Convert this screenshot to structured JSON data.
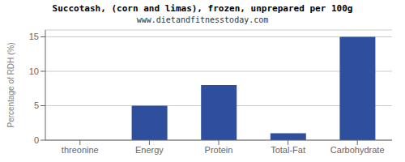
{
  "chart_data": {
    "type": "bar",
    "title": "Succotash, (corn and limas), frozen, unprepared per 100g",
    "subtitle": "www.dietandfitnesstoday.com",
    "categories": [
      "threonine",
      "Energy",
      "Protein",
      "Total-Fat",
      "Carbohydrate"
    ],
    "values": [
      0,
      5,
      8,
      1,
      15
    ],
    "color": "#2d4f9e",
    "ylabel": "Percentage of RDH (%)",
    "ylim": [
      0,
      16
    ],
    "yticks": [
      0,
      5,
      10,
      15
    ],
    "grid": true
  }
}
